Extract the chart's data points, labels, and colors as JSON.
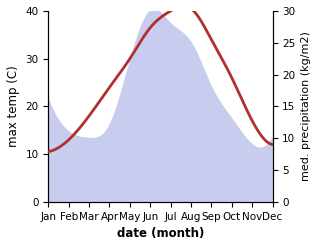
{
  "months": [
    "Jan",
    "Feb",
    "Mar",
    "Apr",
    "May",
    "Jun",
    "Jul",
    "Aug",
    "Sep",
    "Oct",
    "Nov",
    "Dec"
  ],
  "temperature": [
    10.5,
    13.0,
    18.0,
    24.0,
    30.0,
    36.5,
    40.0,
    40.5,
    34.0,
    26.0,
    17.0,
    12.0
  ],
  "precipitation": [
    16,
    11,
    10,
    12,
    22,
    30,
    28,
    25,
    18,
    13,
    9,
    10
  ],
  "temp_ylim": [
    0,
    40
  ],
  "precip_ylim": [
    0,
    30
  ],
  "temp_color": "#b03030",
  "precip_fill_color": "#c8ccee",
  "xlabel": "date (month)",
  "ylabel_left": "max temp (C)",
  "ylabel_right": "med. precipitation (kg/m2)",
  "label_fontsize": 8.5,
  "tick_fontsize": 7.5
}
